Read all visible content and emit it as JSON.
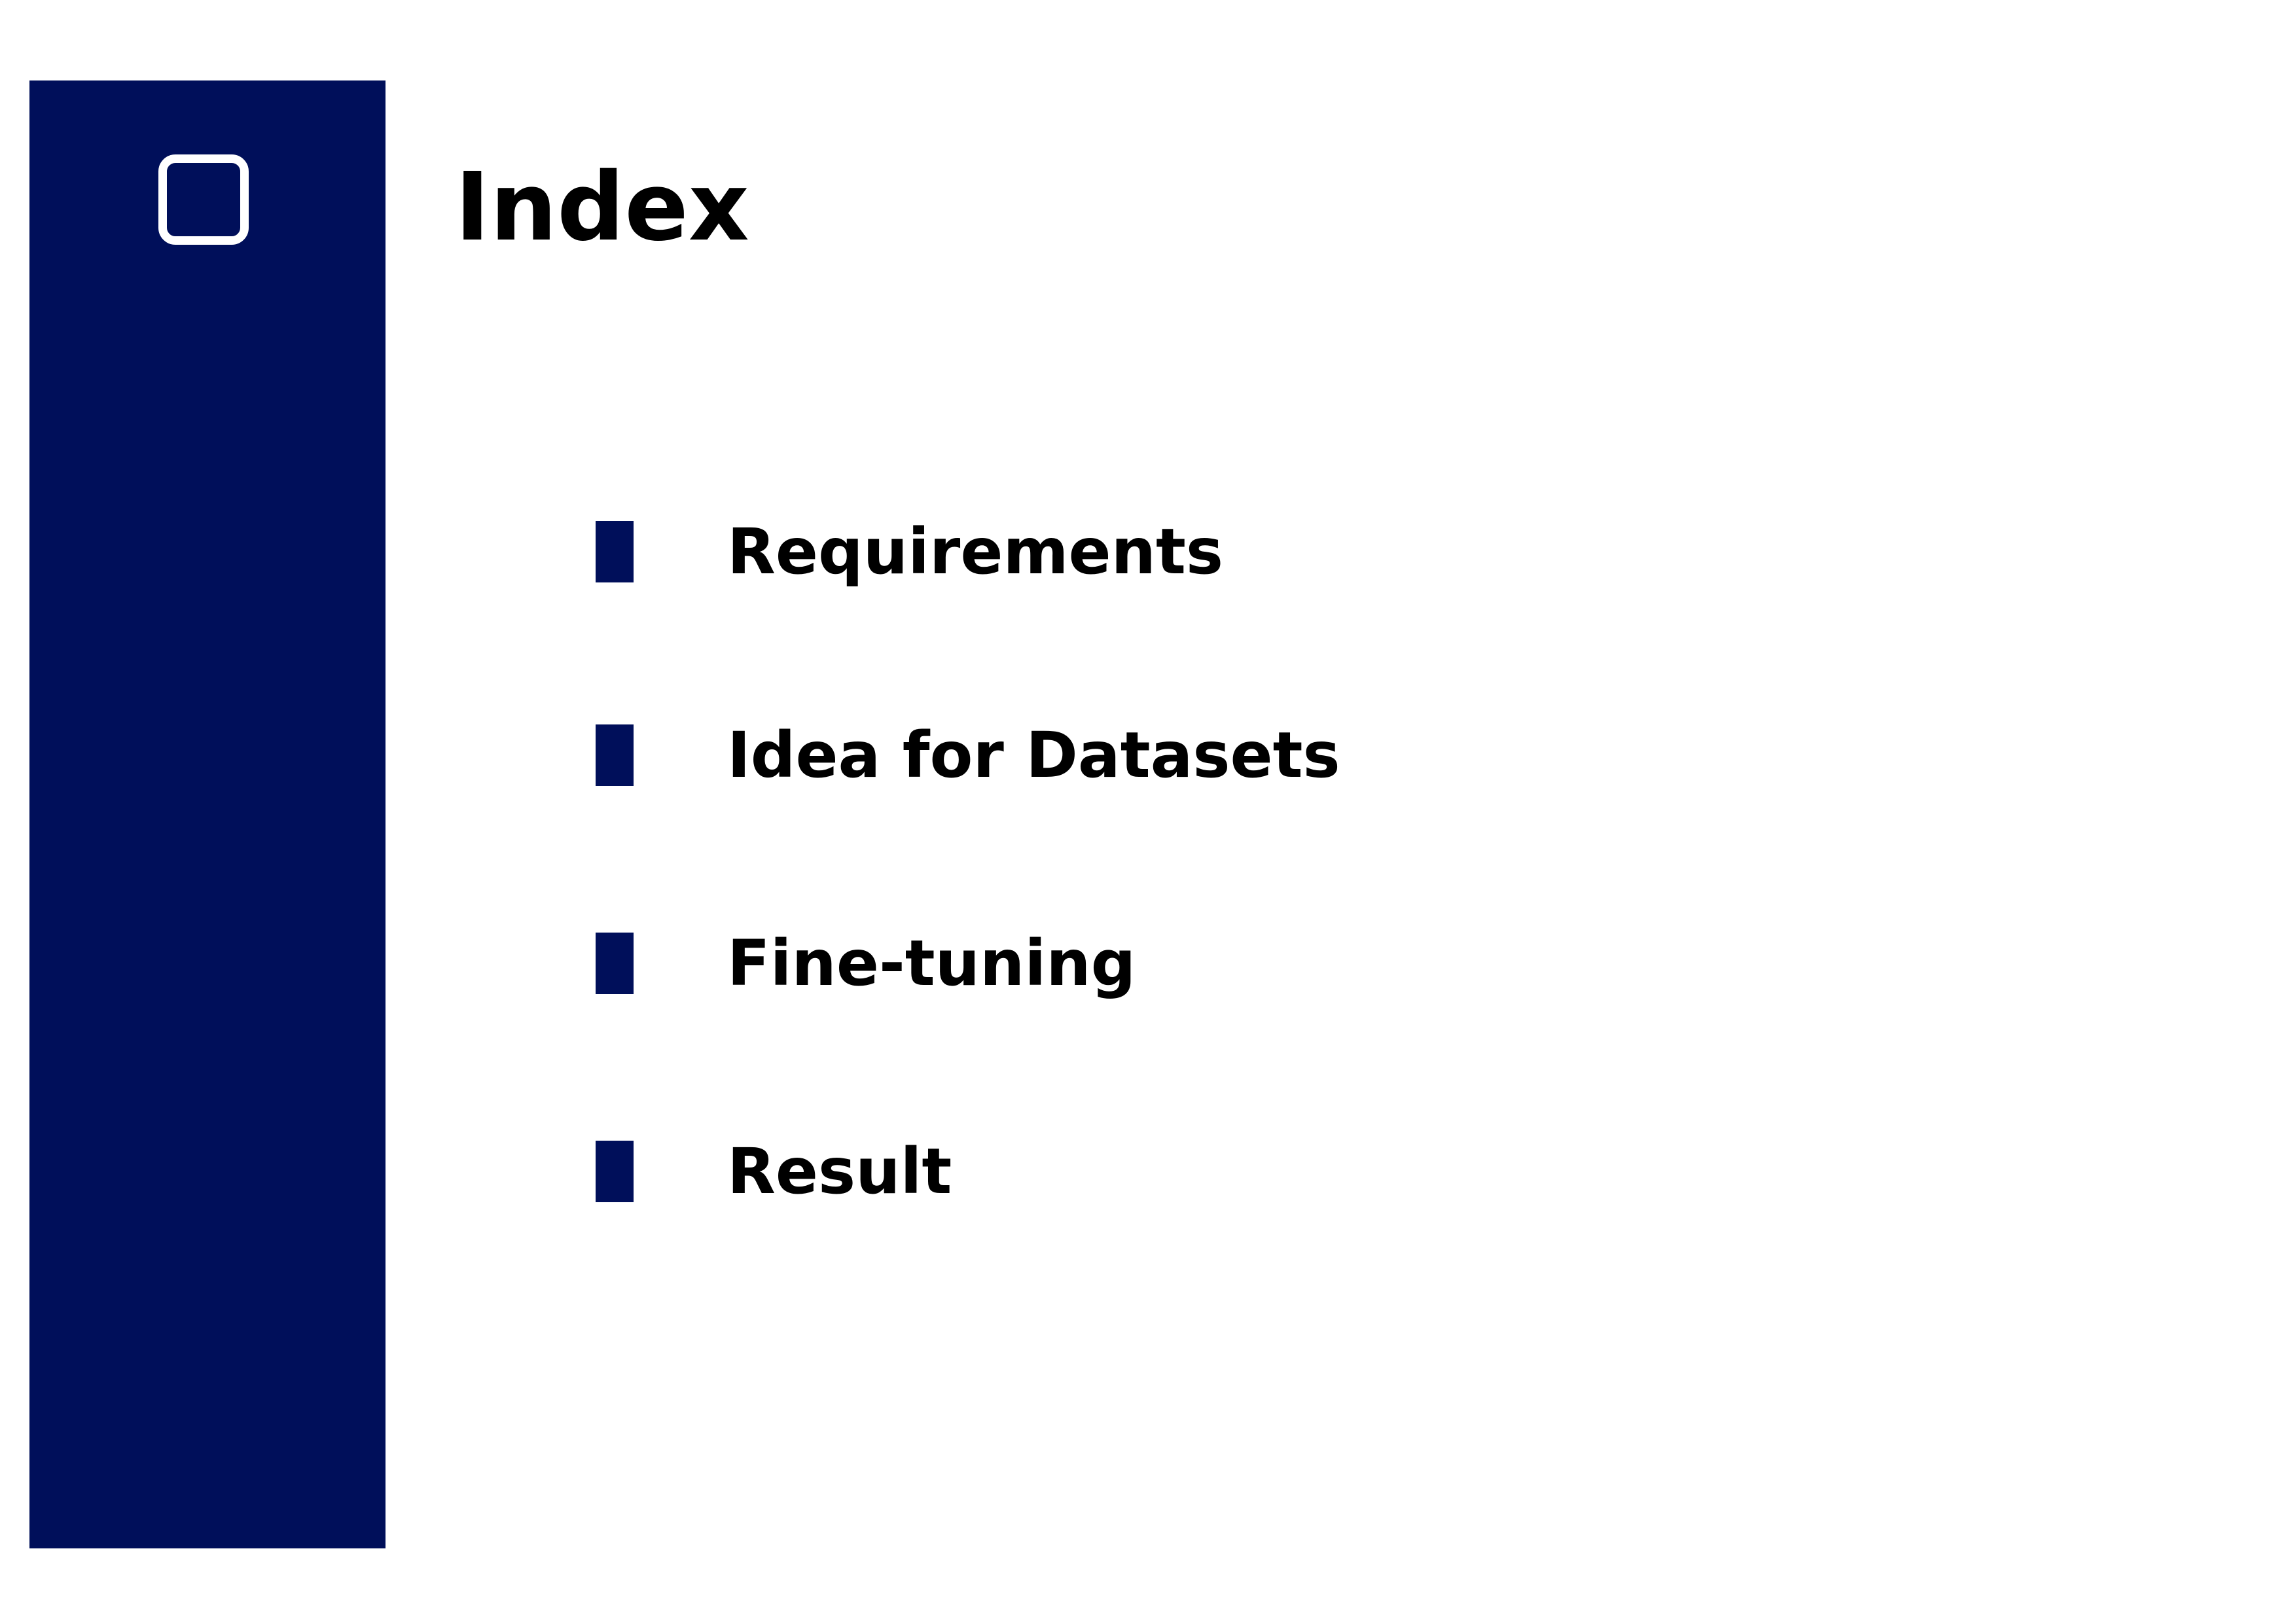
{
  "page": {
    "title": "Index"
  },
  "sidebar": {
    "icon": "rounded-square-icon"
  },
  "index": {
    "items": [
      {
        "label": "Requirements"
      },
      {
        "label": "Idea for Datasets"
      },
      {
        "label": "Fine-tuning"
      },
      {
        "label": "Result"
      }
    ]
  },
  "colors": {
    "accent": "#000f5a",
    "background": "#ffffff",
    "text": "#000000"
  }
}
